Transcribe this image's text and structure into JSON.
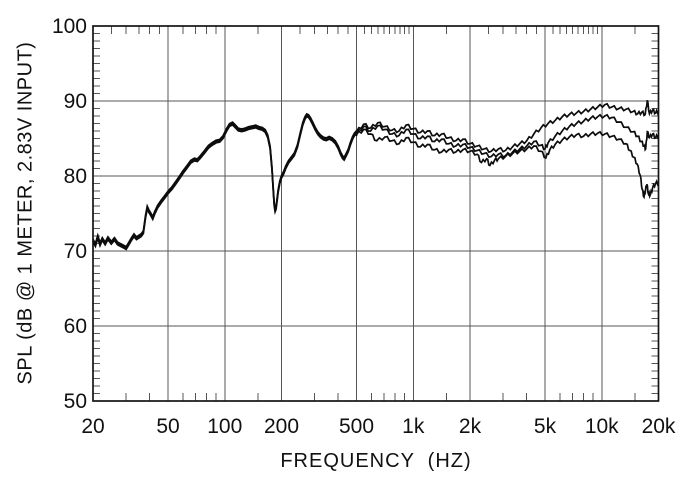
{
  "figure": {
    "x_axis_title": "FREQUENCY  (HZ)",
    "y_axis_title": "SPL (dB @ 1 METER, 2.83V INPUT)"
  },
  "chart_data": {
    "type": "line",
    "title": "",
    "xlabel": "FREQUENCY  (HZ)",
    "ylabel": "SPL (dB @ 1 METER, 2.83V INPUT)",
    "x_scale": "log",
    "xlim": [
      20,
      20000
    ],
    "ylim": [
      50,
      100
    ],
    "grid": "on",
    "legend": "none",
    "x_ticks": [
      {
        "value": 20,
        "label": "20"
      },
      {
        "value": 50,
        "label": "50"
      },
      {
        "value": 100,
        "label": "100"
      },
      {
        "value": 200,
        "label": "200"
      },
      {
        "value": 500,
        "label": "500"
      },
      {
        "value": 1000,
        "label": "1k"
      },
      {
        "value": 2000,
        "label": "2k"
      },
      {
        "value": 5000,
        "label": "5k"
      },
      {
        "value": 10000,
        "label": "10k"
      },
      {
        "value": 20000,
        "label": "20k"
      }
    ],
    "y_ticks": [
      {
        "value": 50,
        "label": "50"
      },
      {
        "value": 60,
        "label": "60"
      },
      {
        "value": 70,
        "label": "70"
      },
      {
        "value": 80,
        "label": "80"
      },
      {
        "value": 90,
        "label": "90"
      },
      {
        "value": 100,
        "label": "100"
      }
    ],
    "x_gridlines": [
      50,
      100,
      200,
      500,
      1000,
      2000,
      5000,
      10000
    ],
    "y_gridlines": [
      60,
      70,
      80,
      90
    ],
    "x_minor_ticks_bottom": [
      30,
      40,
      60,
      70,
      80,
      90,
      150,
      300,
      400,
      600,
      700,
      800,
      900,
      1500,
      3000,
      4000,
      6000,
      7000,
      8000,
      9000,
      15000
    ],
    "x_minor_ticks_top": [
      25,
      30,
      35,
      40,
      45,
      60,
      70,
      80,
      90,
      150,
      250,
      300,
      350,
      400,
      450,
      550,
      600,
      650,
      700,
      750,
      800,
      850,
      900,
      950,
      1500,
      2500,
      3000,
      3500,
      4000,
      4500,
      5500,
      6000,
      6500,
      7000,
      7500,
      8000,
      8500,
      9000,
      9500,
      15000
    ],
    "y_minor_tick_step": 1,
    "colors": {
      "background": "#ffffff",
      "frame": "#141414",
      "grid": "#575757",
      "tick": "#4d4d4d",
      "curve": "#0d0d0d",
      "text": "#111111"
    },
    "jitter_db": 0.22,
    "common_low_freq_points": [
      [
        20,
        71.4
      ],
      [
        20.6,
        70.8
      ],
      [
        21.2,
        71.9
      ],
      [
        21.8,
        70.9
      ],
      [
        22.4,
        71.6
      ],
      [
        23.2,
        71.0
      ],
      [
        24,
        71.7
      ],
      [
        25,
        71.1
      ],
      [
        26,
        71.6
      ],
      [
        27,
        71.0
      ],
      [
        28,
        70.8
      ],
      [
        29,
        70.6
      ],
      [
        30,
        70.4
      ],
      [
        31,
        71.0
      ],
      [
        32,
        71.6
      ],
      [
        33,
        72.1
      ],
      [
        34,
        71.7
      ],
      [
        35,
        71.9
      ],
      [
        36,
        72.1
      ],
      [
        37,
        72.5
      ],
      [
        38,
        74.6
      ],
      [
        38.8,
        75.8
      ],
      [
        39.6,
        75.3
      ],
      [
        40.5,
        74.9
      ],
      [
        41.5,
        74.4
      ],
      [
        42.5,
        75.1
      ],
      [
        44,
        75.9
      ],
      [
        46,
        76.6
      ],
      [
        48,
        77.2
      ],
      [
        50,
        77.8
      ],
      [
        52.5,
        78.4
      ],
      [
        55,
        79.1
      ],
      [
        57.5,
        79.8
      ],
      [
        60,
        80.5
      ],
      [
        63,
        81.2
      ],
      [
        66,
        81.9
      ],
      [
        69,
        82.2
      ],
      [
        71.5,
        82.1
      ],
      [
        74,
        82.5
      ],
      [
        78,
        83.2
      ],
      [
        82,
        83.9
      ],
      [
        86,
        84.3
      ],
      [
        90,
        84.6
      ],
      [
        94,
        84.7
      ],
      [
        98,
        85.2
      ],
      [
        102,
        86.1
      ],
      [
        106,
        86.8
      ],
      [
        110,
        87.0
      ],
      [
        114,
        86.6
      ],
      [
        118,
        86.2
      ],
      [
        123,
        86.1
      ],
      [
        128,
        86.2
      ],
      [
        134,
        86.4
      ],
      [
        140,
        86.5
      ],
      [
        146,
        86.6
      ],
      [
        152,
        86.4
      ],
      [
        158,
        86.3
      ],
      [
        164,
        86.0
      ],
      [
        169,
        85.3
      ],
      [
        174,
        83.8
      ],
      [
        178,
        81.0
      ],
      [
        181,
        78.0
      ],
      [
        183,
        76.2
      ],
      [
        185,
        75.4
      ],
      [
        187,
        75.7
      ],
      [
        189,
        76.6
      ],
      [
        192,
        78.0
      ],
      [
        196,
        79.2
      ],
      [
        200,
        79.9
      ],
      [
        205,
        80.4
      ],
      [
        211,
        81.2
      ],
      [
        218,
        81.9
      ],
      [
        226,
        82.4
      ],
      [
        234,
        82.9
      ],
      [
        243,
        84.0
      ],
      [
        251,
        85.5
      ],
      [
        259,
        86.9
      ],
      [
        266,
        87.7
      ],
      [
        272,
        88.1
      ],
      [
        278,
        88.0
      ],
      [
        285,
        87.6
      ],
      [
        293,
        87.0
      ],
      [
        302,
        86.3
      ],
      [
        312,
        85.7
      ],
      [
        322,
        85.3
      ],
      [
        334,
        85.0
      ],
      [
        346,
        84.9
      ],
      [
        358,
        85.1
      ],
      [
        372,
        84.9
      ],
      [
        386,
        84.5
      ],
      [
        400,
        83.8
      ],
      [
        412,
        83.0
      ],
      [
        422,
        82.5
      ],
      [
        430,
        82.3
      ],
      [
        440,
        82.8
      ],
      [
        452,
        83.4
      ],
      [
        464,
        84.3
      ],
      [
        477,
        85.1
      ],
      [
        489,
        85.6
      ],
      [
        500,
        85.8
      ]
    ],
    "series": [
      {
        "name": "trace-1-top",
        "common_offset_db": 0.18,
        "points": [
          [
            500,
            85.9
          ],
          [
            545,
            86.9
          ],
          [
            594,
            86.4
          ],
          [
            648,
            87.1
          ],
          [
            707,
            86.6
          ],
          [
            771,
            86.1
          ],
          [
            841,
            86.0
          ],
          [
            917,
            86.8
          ],
          [
            1000,
            86.3
          ],
          [
            1091,
            85.8
          ],
          [
            1189,
            86.0
          ],
          [
            1297,
            85.4
          ],
          [
            1414,
            85.6
          ],
          [
            1542,
            85.1
          ],
          [
            1682,
            84.7
          ],
          [
            1834,
            84.9
          ],
          [
            2000,
            84.3
          ],
          [
            2181,
            84.0
          ],
          [
            2378,
            83.6
          ],
          [
            2594,
            83.3
          ],
          [
            2828,
            83.6
          ],
          [
            3084,
            83.4
          ],
          [
            3364,
            83.9
          ],
          [
            3668,
            84.3
          ],
          [
            4000,
            84.7
          ],
          [
            4362,
            85.6
          ],
          [
            4757,
            86.4
          ],
          [
            5187,
            87.0
          ],
          [
            5657,
            87.4
          ],
          [
            6169,
            87.9
          ],
          [
            6727,
            88.2
          ],
          [
            7336,
            88.4
          ],
          [
            8000,
            88.6
          ],
          [
            8724,
            88.9
          ],
          [
            9514,
            89.2
          ],
          [
            10375,
            89.5
          ],
          [
            11314,
            89.2
          ],
          [
            12338,
            89.0
          ],
          [
            13454,
            88.9
          ],
          [
            14672,
            88.6
          ],
          [
            15500,
            88.3
          ],
          [
            16300,
            88.5
          ],
          [
            17000,
            88.2
          ],
          [
            17448,
            90.1
          ],
          [
            17900,
            88.3
          ],
          [
            18600,
            88.8
          ],
          [
            19300,
            88.4
          ],
          [
            20000,
            88.7
          ]
        ]
      },
      {
        "name": "trace-2-middle",
        "common_offset_db": 0,
        "points": [
          [
            500,
            85.7
          ],
          [
            545,
            86.6
          ],
          [
            594,
            86.0
          ],
          [
            648,
            86.7
          ],
          [
            707,
            86.2
          ],
          [
            771,
            85.6
          ],
          [
            841,
            85.4
          ],
          [
            917,
            86.2
          ],
          [
            1000,
            85.6
          ],
          [
            1091,
            85.0
          ],
          [
            1189,
            85.3
          ],
          [
            1297,
            84.6
          ],
          [
            1414,
            84.9
          ],
          [
            1542,
            84.3
          ],
          [
            1682,
            84.0
          ],
          [
            1834,
            84.2
          ],
          [
            2000,
            83.8
          ],
          [
            2181,
            83.4
          ],
          [
            2378,
            83.0
          ],
          [
            2594,
            82.6
          ],
          [
            2828,
            82.9
          ],
          [
            3084,
            82.7
          ],
          [
            3364,
            83.2
          ],
          [
            3668,
            83.6
          ],
          [
            4000,
            84.0
          ],
          [
            4362,
            84.6
          ],
          [
            4757,
            84.1
          ],
          [
            5000,
            83.6
          ],
          [
            5187,
            84.4
          ],
          [
            5657,
            85.3
          ],
          [
            6169,
            86.0
          ],
          [
            6727,
            86.6
          ],
          [
            7336,
            87.0
          ],
          [
            8000,
            87.3
          ],
          [
            8724,
            87.7
          ],
          [
            9514,
            87.9
          ],
          [
            10375,
            88.0
          ],
          [
            11314,
            87.8
          ],
          [
            12338,
            87.2
          ],
          [
            13454,
            86.5
          ],
          [
            14672,
            85.9
          ],
          [
            15500,
            85.3
          ],
          [
            16200,
            84.6
          ],
          [
            16800,
            84.0
          ],
          [
            17100,
            83.6
          ],
          [
            17448,
            85.9
          ],
          [
            17900,
            85.1
          ],
          [
            18600,
            85.6
          ],
          [
            19300,
            85.1
          ],
          [
            20000,
            85.5
          ]
        ]
      },
      {
        "name": "trace-3-bottom",
        "common_offset_db": -0.18,
        "points": [
          [
            500,
            85.5
          ],
          [
            545,
            86.2
          ],
          [
            594,
            85.6
          ],
          [
            640,
            84.7
          ],
          [
            707,
            85.2
          ],
          [
            771,
            84.7
          ],
          [
            841,
            84.3
          ],
          [
            917,
            85.1
          ],
          [
            1000,
            84.5
          ],
          [
            1091,
            83.9
          ],
          [
            1189,
            84.2
          ],
          [
            1297,
            83.5
          ],
          [
            1414,
            83.2
          ],
          [
            1542,
            83.5
          ],
          [
            1682,
            83.2
          ],
          [
            1834,
            83.5
          ],
          [
            2000,
            83.3
          ],
          [
            2181,
            82.9
          ],
          [
            2300,
            81.8
          ],
          [
            2450,
            82.3
          ],
          [
            2550,
            81.4
          ],
          [
            2700,
            82.1
          ],
          [
            2828,
            82.3
          ],
          [
            3084,
            82.6
          ],
          [
            3364,
            83.0
          ],
          [
            3668,
            83.3
          ],
          [
            4000,
            83.6
          ],
          [
            4362,
            84.0
          ],
          [
            4757,
            83.3
          ],
          [
            5050,
            82.4
          ],
          [
            5300,
            83.5
          ],
          [
            5657,
            84.2
          ],
          [
            6169,
            84.8
          ],
          [
            6727,
            85.2
          ],
          [
            7336,
            85.5
          ],
          [
            8000,
            85.3
          ],
          [
            8724,
            85.6
          ],
          [
            9514,
            85.7
          ],
          [
            10375,
            85.6
          ],
          [
            11314,
            85.3
          ],
          [
            12338,
            84.9
          ],
          [
            13454,
            84.3
          ],
          [
            14100,
            83.4
          ],
          [
            14800,
            82.5
          ],
          [
            15400,
            81.6
          ],
          [
            16000,
            80.1
          ],
          [
            16400,
            78.2
          ],
          [
            16750,
            77.2
          ],
          [
            17100,
            78.3
          ],
          [
            17350,
            78.9
          ],
          [
            17700,
            77.6
          ],
          [
            18100,
            77.5
          ],
          [
            18600,
            78.4
          ],
          [
            19300,
            79.0
          ],
          [
            20000,
            79.2
          ]
        ]
      }
    ]
  }
}
